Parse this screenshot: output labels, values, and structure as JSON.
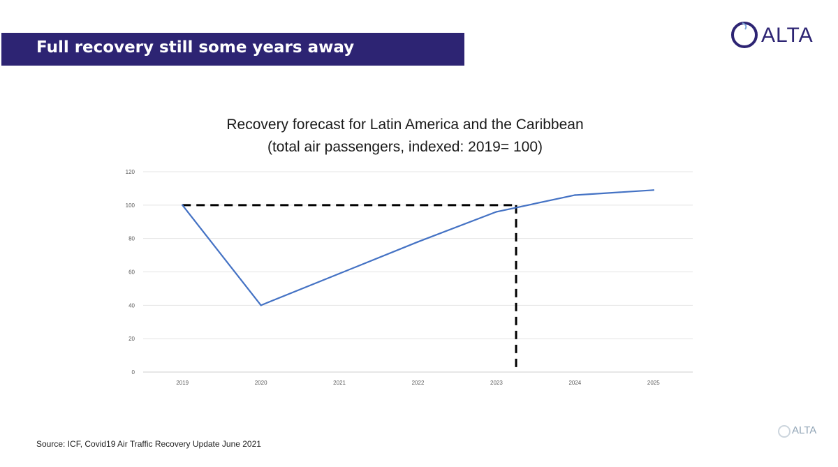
{
  "header": {
    "title": "Full recovery still some years away",
    "logo_text": "ALTA"
  },
  "chart_data": {
    "type": "line",
    "title": "Recovery forecast for Latin America and the Caribbean",
    "subtitle": "(total air passengers, indexed: 2019= 100)",
    "x": [
      "2019",
      "2020",
      "2021",
      "2022",
      "2023",
      "2024",
      "2025"
    ],
    "series": [
      {
        "name": "Total air passengers (indexed)",
        "values": [
          100,
          40,
          59,
          78,
          96,
          106,
          109
        ],
        "color": "#4472c4"
      }
    ],
    "reference_lines": [
      {
        "orientation": "horizontal",
        "y": 100,
        "from_x": 2019,
        "to_x": 2023.25,
        "style": "dashed",
        "color": "#000000"
      },
      {
        "orientation": "vertical",
        "x": 2023.25,
        "from_y": 0,
        "to_y": 100,
        "style": "dashed",
        "color": "#000000"
      }
    ],
    "y_ticks": [
      "0",
      "20",
      "40",
      "60",
      "80",
      "100",
      "120"
    ],
    "ylim": [
      0,
      120
    ],
    "xlabel": "",
    "ylabel": "",
    "grid": true
  },
  "footer": {
    "source": "Source: ICF, Covid19 Air Traffic Recovery Update June 2021",
    "watermark": "ALTA"
  }
}
